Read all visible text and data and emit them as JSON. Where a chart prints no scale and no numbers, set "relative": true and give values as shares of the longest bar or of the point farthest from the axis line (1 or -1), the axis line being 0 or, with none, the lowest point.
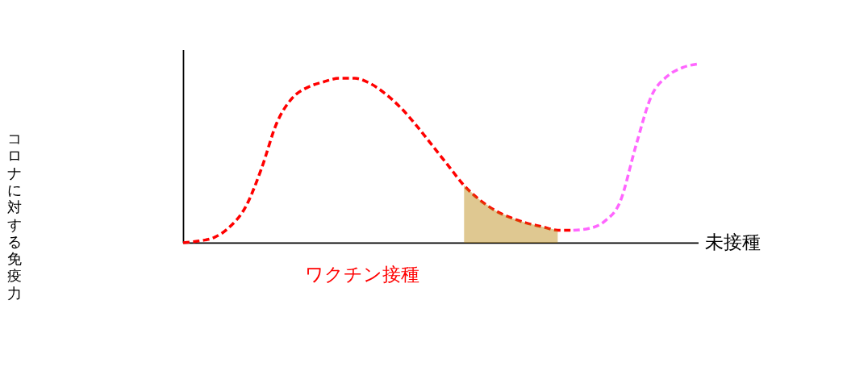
{
  "chart_data": {
    "type": "line",
    "relative": true,
    "ylabel": "コロナに対する免疫力",
    "categories": [
      null,
      null,
      null,
      null,
      null,
      null,
      null,
      null,
      null,
      null,
      null,
      null,
      null,
      null,
      null,
      null,
      null,
      null,
      null,
      null,
      null,
      null,
      null,
      null,
      null,
      null,
      null,
      null,
      null,
      null,
      null,
      null,
      null,
      null
    ],
    "series": [
      {
        "color": "#ff0000",
        "line_style": "dashed",
        "values": [
          0,
          0.01,
          0.03,
          0.09,
          0.2,
          0.41,
          0.67,
          0.81,
          0.87,
          0.9,
          0.92,
          0.92,
          0.89,
          0.83,
          0.75,
          0.65,
          0.54,
          0.43,
          0.32,
          0.24,
          0.18,
          0.14,
          0.11,
          0.09,
          0.07,
          0.07,
          null,
          null,
          null,
          null,
          null,
          null,
          null,
          null
        ]
      },
      {
        "color": "#ff66ff",
        "line_style": "dashed",
        "values": [
          null,
          null,
          null,
          null,
          null,
          null,
          null,
          null,
          null,
          null,
          null,
          null,
          null,
          null,
          null,
          null,
          null,
          null,
          null,
          null,
          null,
          null,
          null,
          null,
          null,
          0.07,
          0.08,
          0.12,
          0.23,
          0.54,
          0.82,
          0.93,
          0.98,
          1.0
        ]
      },
      {
        "type": "area",
        "color": "#b8860b",
        "values": [
          null,
          null,
          null,
          null,
          null,
          null,
          null,
          null,
          null,
          null,
          null,
          null,
          null,
          null,
          null,
          null,
          null,
          null,
          0.32,
          0.24,
          0.18,
          0.14,
          0.11,
          0.09,
          0.07,
          null,
          null,
          null,
          null,
          null,
          null,
          null,
          null,
          null
        ]
      }
    ],
    "annotations": [
      "ワクチン接種",
      "未接種"
    ],
    "grid": false
  }
}
